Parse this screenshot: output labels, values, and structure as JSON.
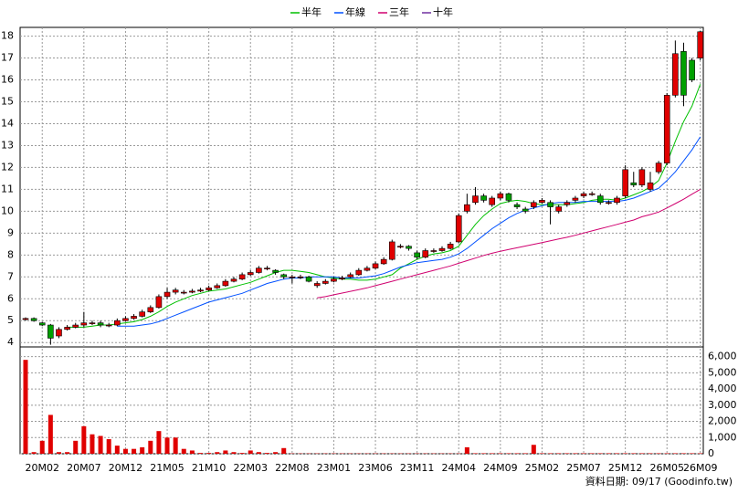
{
  "chart_data": {
    "type": "candlestick",
    "footer": "資料日期: 09/17  (Goodinfo.tw)",
    "categories": [
      null,
      null,
      "20M02",
      null,
      null,
      null,
      null,
      "20M07",
      null,
      null,
      null,
      null,
      "20M12",
      null,
      null,
      null,
      null,
      "21M05",
      null,
      null,
      null,
      null,
      "21M10",
      null,
      null,
      null,
      null,
      "22M03",
      null,
      null,
      null,
      null,
      "22M08",
      null,
      null,
      null,
      null,
      "23M01",
      null,
      null,
      null,
      null,
      "23M06",
      null,
      null,
      null,
      null,
      "23M11",
      null,
      null,
      null,
      null,
      "24M04",
      null,
      null,
      null,
      null,
      "24M09",
      null,
      null,
      null,
      null,
      "25M02",
      null,
      null,
      null,
      null,
      "25M07",
      null,
      null,
      null,
      null,
      "25M12",
      null,
      null,
      null,
      null,
      "26M05",
      null,
      null,
      null,
      "26M09"
    ],
    "ylim": [
      3.8,
      18.4
    ],
    "yticks": [
      4,
      5,
      6,
      7,
      8,
      9,
      10,
      11,
      12,
      13,
      14,
      15,
      16,
      17,
      18
    ],
    "grid": true,
    "up_color": "#e00000",
    "down_color": "#00a000",
    "open": [
      5.05,
      5.1,
      4.9,
      4.8,
      4.3,
      4.6,
      4.7,
      4.8,
      4.9,
      4.9,
      4.8,
      4.8,
      5.0,
      5.1,
      5.2,
      5.4,
      5.6,
      6.1,
      6.3,
      6.3,
      6.3,
      6.35,
      6.4,
      6.5,
      6.6,
      6.8,
      6.9,
      7.1,
      7.2,
      7.4,
      7.3,
      7.1,
      7.0,
      7.0,
      7.0,
      6.6,
      6.7,
      6.8,
      6.9,
      7.0,
      7.1,
      7.3,
      7.4,
      7.6,
      7.8,
      8.4,
      8.4,
      8.1,
      7.9,
      8.2,
      8.2,
      8.3,
      8.6,
      10.0,
      10.4,
      10.7,
      10.3,
      10.6,
      10.8,
      10.3,
      10.1,
      10.2,
      10.4,
      10.4,
      10.0,
      10.3,
      10.5,
      10.7,
      10.8,
      10.7,
      10.4,
      10.4,
      10.7,
      11.3,
      11.2,
      11.0,
      11.8,
      12.2,
      15.3,
      17.3,
      16.9,
      17.0
    ],
    "high": [
      5.15,
      5.15,
      4.95,
      4.85,
      4.7,
      4.8,
      4.9,
      5.4,
      5.0,
      5.0,
      4.9,
      5.1,
      5.2,
      5.3,
      5.5,
      5.7,
      6.2,
      6.5,
      6.5,
      6.4,
      6.45,
      6.5,
      6.6,
      6.7,
      6.9,
      7.0,
      7.2,
      7.3,
      7.5,
      7.5,
      7.35,
      7.15,
      7.1,
      7.1,
      7.05,
      6.8,
      6.9,
      7.0,
      7.05,
      7.2,
      7.4,
      7.5,
      7.7,
      7.9,
      8.7,
      8.5,
      8.45,
      8.2,
      8.3,
      8.3,
      8.4,
      8.6,
      9.9,
      10.8,
      11.1,
      10.8,
      10.7,
      10.9,
      10.85,
      10.4,
      10.2,
      10.5,
      10.6,
      10.5,
      10.3,
      10.5,
      10.7,
      10.9,
      10.9,
      10.8,
      10.5,
      10.7,
      12.1,
      11.8,
      12.0,
      11.8,
      12.3,
      15.4,
      17.8,
      17.7,
      17.0,
      18.25
    ],
    "low": [
      5.0,
      4.95,
      4.75,
      3.9,
      4.2,
      4.55,
      4.65,
      4.7,
      4.8,
      4.7,
      4.7,
      4.75,
      4.95,
      5.05,
      5.15,
      5.35,
      5.55,
      6.0,
      6.2,
      6.2,
      6.25,
      6.3,
      6.35,
      6.45,
      6.55,
      6.75,
      6.85,
      7.05,
      7.15,
      7.3,
      7.1,
      6.9,
      6.7,
      6.9,
      6.75,
      6.5,
      6.65,
      6.75,
      6.85,
      6.95,
      7.05,
      7.25,
      7.35,
      7.55,
      7.75,
      8.3,
      8.2,
      7.8,
      7.85,
      8.1,
      8.15,
      8.25,
      8.55,
      9.9,
      10.3,
      10.4,
      10.2,
      10.5,
      10.4,
      10.1,
      9.9,
      10.1,
      10.35,
      9.4,
      9.9,
      10.2,
      10.4,
      10.6,
      10.7,
      10.3,
      10.3,
      10.3,
      10.6,
      11.1,
      11.1,
      10.9,
      11.7,
      12.1,
      15.2,
      14.8,
      15.9,
      16.9
    ],
    "close": [
      5.1,
      5.0,
      4.8,
      4.2,
      4.6,
      4.7,
      4.8,
      4.9,
      4.9,
      4.8,
      4.8,
      5.0,
      5.1,
      5.2,
      5.4,
      5.6,
      6.1,
      6.3,
      6.4,
      6.3,
      6.35,
      6.4,
      6.5,
      6.6,
      6.8,
      6.9,
      7.1,
      7.2,
      7.4,
      7.4,
      7.2,
      7.0,
      7.0,
      7.0,
      6.8,
      6.7,
      6.8,
      6.9,
      6.95,
      7.1,
      7.3,
      7.4,
      7.6,
      7.8,
      8.6,
      8.4,
      8.3,
      7.9,
      8.2,
      8.2,
      8.3,
      8.5,
      9.8,
      10.3,
      10.7,
      10.5,
      10.6,
      10.8,
      10.5,
      10.2,
      10.0,
      10.4,
      10.5,
      10.2,
      10.2,
      10.4,
      10.6,
      10.8,
      10.8,
      10.4,
      10.4,
      10.6,
      11.9,
      11.2,
      11.9,
      11.3,
      12.2,
      15.3,
      17.2,
      15.3,
      16.0,
      18.2
    ],
    "series": [
      {
        "name": "半年",
        "color": "#00c000",
        "values": [
          null,
          null,
          null,
          null,
          null,
          4.7,
          4.7,
          4.7,
          4.75,
          4.8,
          4.8,
          4.85,
          4.9,
          4.95,
          5.05,
          5.2,
          5.4,
          5.65,
          5.85,
          6.0,
          6.15,
          6.25,
          6.35,
          6.4,
          6.45,
          6.55,
          6.65,
          6.75,
          6.9,
          7.05,
          7.2,
          7.3,
          7.3,
          7.25,
          7.2,
          7.1,
          7.0,
          6.95,
          6.9,
          6.9,
          6.85,
          6.85,
          6.9,
          7.0,
          7.1,
          7.4,
          7.6,
          7.8,
          7.95,
          8.05,
          8.1,
          8.2,
          8.4,
          8.9,
          9.4,
          9.8,
          10.1,
          10.35,
          10.45,
          10.5,
          10.45,
          10.35,
          10.3,
          10.3,
          10.3,
          10.3,
          10.35,
          10.4,
          10.5,
          10.55,
          10.55,
          10.5,
          10.6,
          10.75,
          10.9,
          11.1,
          11.4,
          12.2,
          13.2,
          14.1,
          14.8,
          15.8
        ]
      },
      {
        "name": "年線",
        "color": "#0050ff",
        "values": [
          null,
          null,
          null,
          null,
          null,
          null,
          null,
          null,
          null,
          null,
          null,
          4.75,
          4.75,
          4.75,
          4.8,
          4.85,
          4.95,
          5.1,
          5.25,
          5.4,
          5.55,
          5.7,
          5.85,
          5.95,
          6.05,
          6.15,
          6.25,
          6.4,
          6.55,
          6.7,
          6.8,
          6.9,
          6.95,
          6.95,
          7.0,
          7.0,
          7.0,
          7.0,
          6.95,
          6.95,
          6.95,
          7.0,
          7.05,
          7.15,
          7.3,
          7.45,
          7.55,
          7.65,
          7.7,
          7.75,
          7.8,
          7.9,
          8.05,
          8.3,
          8.6,
          8.9,
          9.2,
          9.45,
          9.7,
          9.9,
          10.05,
          10.15,
          10.25,
          10.35,
          10.4,
          10.4,
          10.4,
          10.45,
          10.45,
          10.45,
          10.45,
          10.45,
          10.5,
          10.6,
          10.75,
          10.9,
          11.05,
          11.4,
          11.8,
          12.3,
          12.8,
          13.4
        ]
      },
      {
        "name": "三年",
        "color": "#d0006f",
        "values": [
          null,
          null,
          null,
          null,
          null,
          null,
          null,
          null,
          null,
          null,
          null,
          null,
          null,
          null,
          null,
          null,
          null,
          null,
          null,
          null,
          null,
          null,
          null,
          null,
          null,
          null,
          null,
          null,
          null,
          null,
          null,
          null,
          null,
          null,
          null,
          6.04,
          6.1,
          6.18,
          6.26,
          6.34,
          6.42,
          6.5,
          6.6,
          6.7,
          6.8,
          6.9,
          7.0,
          7.1,
          7.2,
          7.3,
          7.4,
          7.5,
          7.62,
          7.74,
          7.86,
          7.98,
          8.08,
          8.17,
          8.25,
          8.33,
          8.41,
          8.49,
          8.57,
          8.65,
          8.73,
          8.81,
          8.9,
          9.0,
          9.1,
          9.2,
          9.3,
          9.4,
          9.5,
          9.6,
          9.75,
          9.85,
          9.96,
          10.15,
          10.35,
          10.55,
          10.78,
          11.0
        ]
      },
      {
        "name": "十年",
        "color": "#7030a0",
        "values": [
          null,
          null,
          null,
          null,
          null,
          null,
          null,
          null,
          null,
          null,
          null,
          null,
          null,
          null,
          null,
          null,
          null,
          null,
          null,
          null,
          null,
          null,
          null,
          null,
          null,
          null,
          null,
          null,
          null,
          null,
          null,
          null,
          null,
          null,
          null,
          null,
          null,
          null,
          null,
          null,
          null,
          null,
          null,
          null,
          null,
          null,
          null,
          null,
          null,
          null,
          null,
          null,
          null,
          null,
          null,
          null,
          null,
          null,
          null,
          null,
          null,
          null,
          null,
          null,
          null,
          null,
          null,
          null,
          null,
          null,
          null,
          null,
          null,
          null,
          null,
          null,
          null,
          null,
          null,
          null,
          null,
          null
        ]
      }
    ],
    "volume": {
      "color": "#e00000",
      "y2lim": [
        0,
        6600
      ],
      "y2ticks": [
        0,
        {
          "value": 1000,
          "label": "1,000"
        },
        {
          "value": 2000,
          "label": "2,000"
        },
        {
          "value": 3000,
          "label": "3,000"
        },
        {
          "value": 4000,
          "label": "4,000"
        },
        {
          "value": 5000,
          "label": "5,000"
        },
        {
          "value": 6000,
          "label": "6,000"
        }
      ],
      "values": [
        5800,
        100,
        800,
        2400,
        100,
        100,
        800,
        1700,
        1200,
        1100,
        900,
        500,
        300,
        300,
        400,
        800,
        1400,
        1000,
        1000,
        300,
        200,
        50,
        50,
        100,
        200,
        100,
        50,
        200,
        100,
        50,
        100,
        350,
        20,
        20,
        20,
        20,
        20,
        20,
        20,
        20,
        20,
        20,
        20,
        20,
        20,
        20,
        20,
        20,
        20,
        20,
        20,
        20,
        20,
        400,
        30,
        30,
        30,
        30,
        30,
        30,
        30,
        550,
        30,
        30,
        30,
        30,
        30,
        30,
        30,
        30,
        30,
        30,
        30,
        30,
        30,
        30,
        30,
        30,
        30,
        30,
        30,
        30
      ]
    }
  }
}
